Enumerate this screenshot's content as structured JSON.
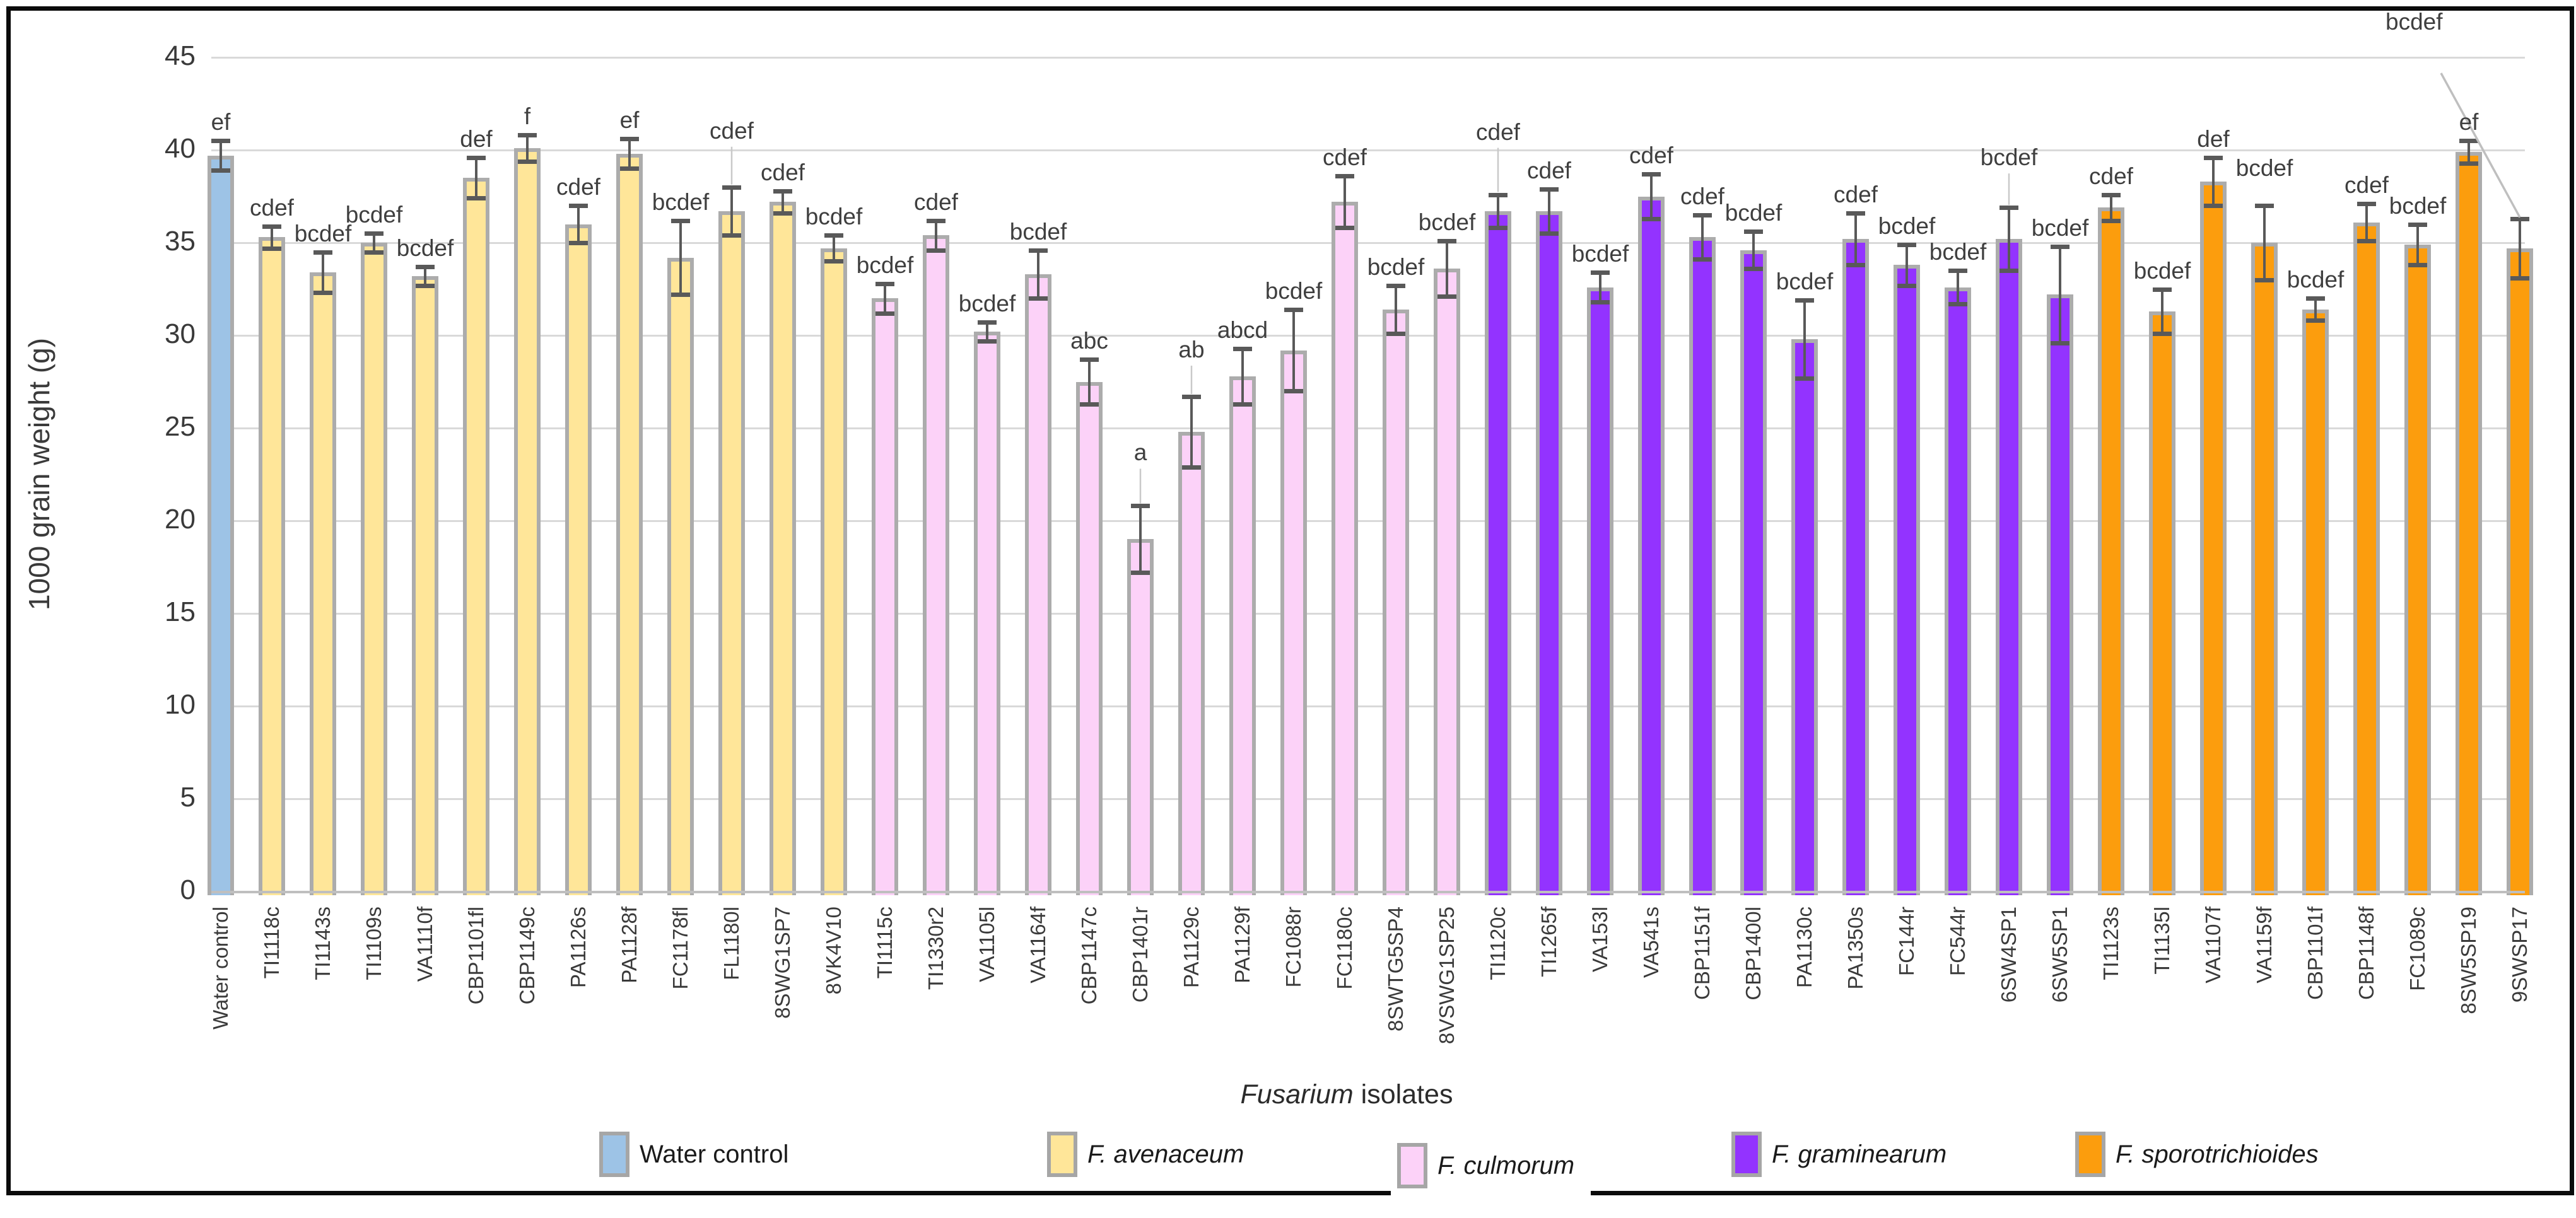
{
  "chart_data": {
    "type": "bar",
    "title": "",
    "ylabel": "1000 grain weight (g)",
    "xlabel_italic": "Fusarium",
    "xlabel_rest": " isolates",
    "ylim": [
      0,
      45
    ],
    "yticks": [
      0,
      5,
      10,
      15,
      20,
      25,
      30,
      35,
      40,
      45
    ],
    "grid": true,
    "legend_position": "bottom",
    "error_bar_color": "#595959",
    "gridline_color": "#d9d9d9",
    "groups": [
      {
        "name": "Water control",
        "italic": false,
        "fill": "#9dc3e6"
      },
      {
        "name": "F. avenaceum",
        "italic": true,
        "fill": "#ffe699"
      },
      {
        "name": "F. culmorum",
        "italic": true,
        "fill": "#fcd2f8",
        "boxed": true
      },
      {
        "name": "F. graminearum",
        "italic": true,
        "fill": "#9333ff"
      },
      {
        "name": "F. sporotrichioides",
        "italic": true,
        "fill": "#fc9d0d"
      }
    ],
    "bars": [
      {
        "label": "Water control",
        "group": 0,
        "value": 39.7,
        "error": 0.8,
        "letter": "ef"
      },
      {
        "label": "TI1118c",
        "group": 1,
        "value": 35.3,
        "error": 0.6,
        "letter": "cdef"
      },
      {
        "label": "TI1143s",
        "group": 1,
        "value": 33.4,
        "error": 1.1,
        "letter": "bcdef"
      },
      {
        "label": "TI1109s",
        "group": 1,
        "value": 35.0,
        "error": 0.5,
        "letter": "bcdef"
      },
      {
        "label": "VA1110f",
        "group": 1,
        "value": 33.2,
        "error": 0.5,
        "letter": "bcdef"
      },
      {
        "label": "CBP1101fl",
        "group": 1,
        "value": 38.5,
        "error": 1.1,
        "letter": "def"
      },
      {
        "label": "CBP1149c",
        "group": 1,
        "value": 40.1,
        "error": 0.7,
        "letter": "f"
      },
      {
        "label": "PA1126s",
        "group": 1,
        "value": 36.0,
        "error": 1.0,
        "letter": "cdef"
      },
      {
        "label": "PA1128f",
        "group": 1,
        "value": 39.8,
        "error": 0.8,
        "letter": "ef"
      },
      {
        "label": "FC1178fl",
        "group": 1,
        "value": 34.2,
        "error": 2.0,
        "letter": "bcdef"
      },
      {
        "label": "FL1180l",
        "group": 1,
        "value": 36.7,
        "error": 1.3,
        "letter": "cdef",
        "dy": -60
      },
      {
        "label": "8SWG1SP7",
        "group": 1,
        "value": 37.2,
        "error": 0.6,
        "letter": "cdef"
      },
      {
        "label": "8VK4V10",
        "group": 1,
        "value": 34.7,
        "error": 0.7,
        "letter": "bcdef"
      },
      {
        "label": "TI1115c",
        "group": 2,
        "value": 32.0,
        "error": 0.8,
        "letter": "bcdef"
      },
      {
        "label": "TI1330r2",
        "group": 2,
        "value": 35.4,
        "error": 0.8,
        "letter": "cdef"
      },
      {
        "label": "VA1105l",
        "group": 2,
        "value": 30.2,
        "error": 0.5,
        "letter": "bcdef"
      },
      {
        "label": "VA1164f",
        "group": 2,
        "value": 33.3,
        "error": 1.3,
        "letter": "bcdef"
      },
      {
        "label": "CBP1147c",
        "group": 2,
        "value": 27.5,
        "error": 1.2,
        "letter": "abc"
      },
      {
        "label": "CBP1401r",
        "group": 2,
        "value": 19.0,
        "error": 1.8,
        "letter": "a",
        "dy": -55
      },
      {
        "label": "PA1129c",
        "group": 2,
        "value": 24.8,
        "error": 1.9,
        "letter": "ab",
        "dy": -45
      },
      {
        "label": "PA1129f",
        "group": 2,
        "value": 27.8,
        "error": 1.5,
        "letter": "abcd"
      },
      {
        "label": "FC1088r",
        "group": 2,
        "value": 29.2,
        "error": 2.2,
        "letter": "bcdef"
      },
      {
        "label": "FC1180c",
        "group": 2,
        "value": 37.2,
        "error": 1.4,
        "letter": "cdef"
      },
      {
        "label": "8SWTG5SP4",
        "group": 2,
        "value": 31.4,
        "error": 1.3,
        "letter": "bcdef"
      },
      {
        "label": "8VSWG1SP25",
        "group": 2,
        "value": 33.6,
        "error": 1.5,
        "letter": "bcdef"
      },
      {
        "label": "TI1120c",
        "group": 3,
        "value": 36.7,
        "error": 0.9,
        "letter": "cdef",
        "dy": -70
      },
      {
        "label": "TI1265f",
        "group": 3,
        "value": 36.7,
        "error": 1.2,
        "letter": "cdef"
      },
      {
        "label": "VA153l",
        "group": 3,
        "value": 32.6,
        "error": 0.8,
        "letter": "bcdef"
      },
      {
        "label": "VA541s",
        "group": 3,
        "value": 37.5,
        "error": 1.2,
        "letter": "cdef"
      },
      {
        "label": "CBP1151f",
        "group": 3,
        "value": 35.3,
        "error": 1.2,
        "letter": "cdef"
      },
      {
        "label": "CBP1400l",
        "group": 3,
        "value": 34.6,
        "error": 1.0,
        "letter": "bcdef"
      },
      {
        "label": "PA1130c",
        "group": 3,
        "value": 29.8,
        "error": 2.1,
        "letter": "bcdef"
      },
      {
        "label": "PA1350s",
        "group": 3,
        "value": 35.2,
        "error": 1.4,
        "letter": "cdef"
      },
      {
        "label": "FC144r",
        "group": 3,
        "value": 33.8,
        "error": 1.1,
        "letter": "bcdef"
      },
      {
        "label": "FC544r",
        "group": 3,
        "value": 32.6,
        "error": 0.9,
        "letter": "bcdef"
      },
      {
        "label": "6SW4SP1",
        "group": 3,
        "value": 35.2,
        "error": 1.7,
        "letter": "bcdef",
        "dy": -50
      },
      {
        "label": "6SW5SP1",
        "group": 3,
        "value": 32.2,
        "error": 2.6,
        "letter": "bcdef"
      },
      {
        "label": "TI1123s",
        "group": 4,
        "value": 36.9,
        "error": 0.7,
        "letter": "cdef"
      },
      {
        "label": "TI1135l",
        "group": 4,
        "value": 31.3,
        "error": 1.2,
        "letter": "bcdef"
      },
      {
        "label": "VA1107f",
        "group": 4,
        "value": 38.3,
        "error": 1.3,
        "letter": "def"
      },
      {
        "label": "VA1159f",
        "group": 4,
        "value": 35.0,
        "error": 2.0,
        "letter": "bcdef",
        "dy": -30
      },
      {
        "label": "CBP1101f",
        "group": 4,
        "value": 31.4,
        "error": 0.6,
        "letter": "bcdef"
      },
      {
        "label": "CBP1148f",
        "group": 4,
        "value": 36.1,
        "error": 1.0,
        "letter": "cdef"
      },
      {
        "label": "FC1089c",
        "group": 4,
        "value": 34.9,
        "error": 1.1,
        "letter": "bcdef"
      },
      {
        "label": "8SW5SP19",
        "group": 4,
        "value": 39.9,
        "error": 0.6,
        "letter": "ef"
      },
      {
        "label": "9SWSP17",
        "group": 4,
        "value": 34.7,
        "error": 1.6,
        "letter": "bcdef",
        "callout": true
      }
    ]
  }
}
